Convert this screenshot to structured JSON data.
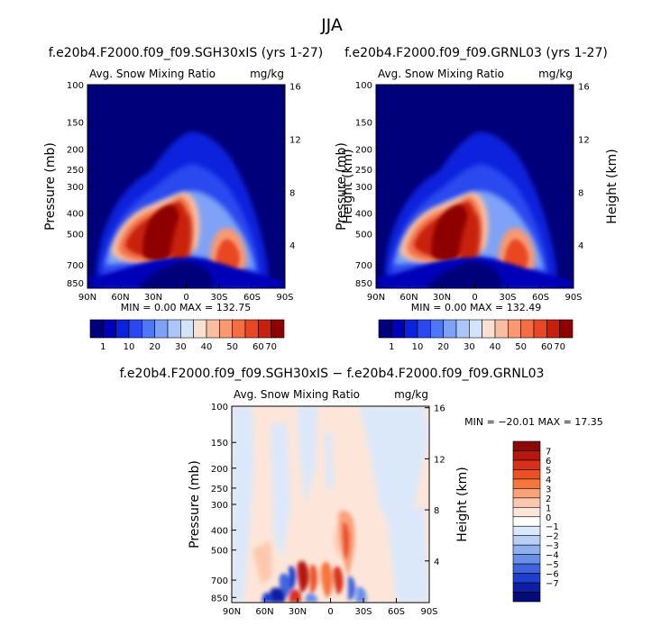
{
  "figure_title": "JJA",
  "chart_data": [
    {
      "type": "heatmap",
      "title": "f.e20b4.F2000.f09_f09.SGH30xIS (yrs 1-27)",
      "subtitle_left": "Avg. Snow Mixing Ratio",
      "subtitle_right": "mg/kg",
      "ylabel": "Pressure (mb)",
      "ylabel_right": "Height (km)",
      "x_ticks": [
        "90N",
        "60N",
        "30N",
        "0",
        "30S",
        "60S",
        "90S"
      ],
      "y_ticks": [
        "100",
        "150",
        "200",
        "250",
        "300",
        "400",
        "500",
        "700",
        "850"
      ],
      "y_right_ticks": [
        "16",
        "12",
        "8",
        "4"
      ],
      "stats": "MIN =    0.00   MAX = 132.75",
      "colorbar_levels": [
        "1",
        "10",
        "20",
        "30",
        "40",
        "50",
        "60",
        "70"
      ],
      "colorbar_colors": [
        "#00007a",
        "#0000b8",
        "#0a22dc",
        "#2a48ee",
        "#5077f3",
        "#7da2f7",
        "#aac6fa",
        "#d2e4fb",
        "#fbe0d2",
        "#f9bda0",
        "#f79a73",
        "#f26f46",
        "#e84624",
        "#c8200d",
        "#8e0000"
      ]
    },
    {
      "type": "heatmap",
      "title": "f.e20b4.F2000.f09_f09.GRNL03 (yrs 1-27)",
      "subtitle_left": "Avg. Snow Mixing Ratio",
      "subtitle_right": "mg/kg",
      "ylabel": "Pressure (mb)",
      "ylabel_right": "Height (km)",
      "x_ticks": [
        "90N",
        "60N",
        "30N",
        "0",
        "30S",
        "60S",
        "90S"
      ],
      "y_ticks": [
        "100",
        "150",
        "200",
        "250",
        "300",
        "400",
        "500",
        "700",
        "850"
      ],
      "y_right_ticks": [
        "16",
        "12",
        "8",
        "4"
      ],
      "stats": "MIN =    0.00   MAX = 132.49",
      "colorbar_levels": [
        "1",
        "10",
        "20",
        "30",
        "40",
        "50",
        "60",
        "70"
      ],
      "colorbar_colors": [
        "#00007a",
        "#0000b8",
        "#0a22dc",
        "#2a48ee",
        "#5077f3",
        "#7da2f7",
        "#aac6fa",
        "#d2e4fb",
        "#fbe0d2",
        "#f9bda0",
        "#f79a73",
        "#f26f46",
        "#e84624",
        "#c8200d",
        "#8e0000"
      ]
    },
    {
      "type": "heatmap",
      "title": "f.e20b4.F2000.f09_f09.SGH30xIS − f.e20b4.F2000.f09_f09.GRNL03",
      "subtitle_left": "Avg. Snow Mixing Ratio",
      "subtitle_right": "mg/kg",
      "ylabel": "Pressure (mb)",
      "ylabel_right": "Height (km)",
      "x_ticks": [
        "90N",
        "60N",
        "30N",
        "0",
        "30S",
        "60S",
        "90S"
      ],
      "y_ticks": [
        "100",
        "150",
        "200",
        "250",
        "300",
        "400",
        "500",
        "700",
        "850"
      ],
      "y_right_ticks": [
        "16",
        "12",
        "8",
        "4"
      ],
      "stats": "MIN = −20.01   MAX =  17.35",
      "colorbar_levels": [
        "7",
        "6",
        "5",
        "4",
        "3",
        "2",
        "1",
        "0",
        "−1",
        "−2",
        "−3",
        "−4",
        "−5",
        "−6",
        "−7"
      ],
      "colorbar_colors": [
        "#8a0a0a",
        "#b5180f",
        "#d8301a",
        "#ec5026",
        "#f6763e",
        "#f9a27a",
        "#fcc8ad",
        "#fde6d9",
        "#ffffff",
        "#dbe8fa",
        "#b9d0f6",
        "#8fb0f0",
        "#6a8fe8",
        "#3f65de",
        "#1c3fcf",
        "#0b1ea5",
        "#050b77"
      ]
    }
  ]
}
